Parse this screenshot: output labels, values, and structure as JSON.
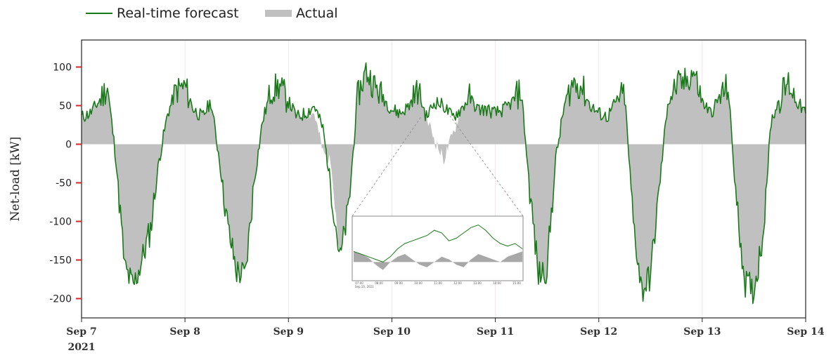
{
  "chart_data": {
    "type": "area",
    "xlabel": "",
    "ylabel": "Net-load [kW]",
    "x_ticks": [
      "Sep 7",
      "Sep 8",
      "Sep 9",
      "Sep 10",
      "Sep 11",
      "Sep 12",
      "Sep 13",
      "Sep 14"
    ],
    "x_year_label": "2021",
    "xlim": [
      "2021-09-07",
      "2021-09-14"
    ],
    "y_ticks": [
      100,
      50,
      0,
      -50,
      -100,
      -150,
      -200
    ],
    "ylim": [
      -225,
      135
    ],
    "legend": {
      "position": "top-left",
      "entries": [
        "Real-time forecast",
        "Actual"
      ]
    },
    "series": [
      {
        "name": "Real-time forecast",
        "kind": "line",
        "color": "#1a7a1a",
        "x": [
          "2021-09-07T00:00",
          "2021-09-07T02:00",
          "2021-09-07T04:00",
          "2021-09-07T06:00",
          "2021-09-07T08:00",
          "2021-09-07T10:00",
          "2021-09-07T12:00",
          "2021-09-07T14:00",
          "2021-09-07T16:00",
          "2021-09-07T18:00",
          "2021-09-07T20:00",
          "2021-09-07T22:00",
          "2021-09-08T00:00",
          "2021-09-08T02:00",
          "2021-09-08T04:00",
          "2021-09-08T06:00",
          "2021-09-08T08:00",
          "2021-09-08T10:00",
          "2021-09-08T12:00",
          "2021-09-08T14:00",
          "2021-09-08T16:00",
          "2021-09-08T18:00",
          "2021-09-08T20:00",
          "2021-09-08T22:00",
          "2021-09-09T00:00",
          "2021-09-09T02:00",
          "2021-09-09T04:00",
          "2021-09-09T06:00",
          "2021-09-09T08:00",
          "2021-09-09T10:00",
          "2021-09-09T12:00",
          "2021-09-09T14:00",
          "2021-09-09T16:00",
          "2021-09-09T18:00",
          "2021-09-09T20:00",
          "2021-09-09T22:00",
          "2021-09-10T00:00",
          "2021-09-10T02:00",
          "2021-09-10T04:00",
          "2021-09-10T06:00",
          "2021-09-10T08:00",
          "2021-09-10T10:00",
          "2021-09-10T12:00",
          "2021-09-10T14:00",
          "2021-09-10T16:00",
          "2021-09-10T18:00",
          "2021-09-10T20:00",
          "2021-09-10T22:00",
          "2021-09-11T00:00",
          "2021-09-11T02:00",
          "2021-09-11T04:00",
          "2021-09-11T06:00",
          "2021-09-11T08:00",
          "2021-09-11T10:00",
          "2021-09-11T12:00",
          "2021-09-11T14:00",
          "2021-09-11T16:00",
          "2021-09-11T18:00",
          "2021-09-11T20:00",
          "2021-09-11T22:00",
          "2021-09-12T00:00",
          "2021-09-12T02:00",
          "2021-09-12T04:00",
          "2021-09-12T06:00",
          "2021-09-12T08:00",
          "2021-09-12T10:00",
          "2021-09-12T12:00",
          "2021-09-12T14:00",
          "2021-09-12T16:00",
          "2021-09-12T18:00",
          "2021-09-12T20:00",
          "2021-09-12T22:00",
          "2021-09-13T00:00",
          "2021-09-13T02:00",
          "2021-09-13T04:00",
          "2021-09-13T06:00",
          "2021-09-13T08:00",
          "2021-09-13T10:00",
          "2021-09-13T12:00",
          "2021-09-13T14:00",
          "2021-09-13T16:00",
          "2021-09-13T18:00",
          "2021-09-13T20:00",
          "2021-09-13T22:00",
          "2021-09-14T00:00"
        ],
        "values": [
          35,
          40,
          55,
          75,
          -20,
          -160,
          -185,
          -150,
          -110,
          -20,
          40,
          70,
          75,
          45,
          35,
          55,
          -20,
          -110,
          -165,
          -170,
          -50,
          30,
          70,
          75,
          55,
          35,
          40,
          50,
          20,
          -60,
          -150,
          -80,
          60,
          95,
          75,
          60,
          45,
          40,
          50,
          70,
          35,
          55,
          50,
          35,
          45,
          60,
          45,
          45,
          40,
          45,
          55,
          70,
          -60,
          -170,
          -160,
          -20,
          50,
          80,
          75,
          50,
          40,
          35,
          55,
          65,
          -100,
          -190,
          -170,
          -60,
          55,
          75,
          80,
          95,
          55,
          40,
          60,
          75,
          -80,
          -180,
          -190,
          -120,
          30,
          60,
          80,
          55,
          40
        ]
      },
      {
        "name": "Actual",
        "kind": "area",
        "color": "#c0c0c0",
        "x": [
          "2021-09-07T00:00",
          "2021-09-07T02:00",
          "2021-09-07T04:00",
          "2021-09-07T06:00",
          "2021-09-07T08:00",
          "2021-09-07T10:00",
          "2021-09-07T12:00",
          "2021-09-07T14:00",
          "2021-09-07T16:00",
          "2021-09-07T18:00",
          "2021-09-07T20:00",
          "2021-09-07T22:00",
          "2021-09-08T00:00",
          "2021-09-08T02:00",
          "2021-09-08T04:00",
          "2021-09-08T06:00",
          "2021-09-08T08:00",
          "2021-09-08T10:00",
          "2021-09-08T12:00",
          "2021-09-08T14:00",
          "2021-09-08T16:00",
          "2021-09-08T18:00",
          "2021-09-08T20:00",
          "2021-09-08T22:00",
          "2021-09-09T00:00",
          "2021-09-09T02:00",
          "2021-09-09T04:00",
          "2021-09-09T06:00",
          "2021-09-09T08:00",
          "2021-09-09T10:00",
          "2021-09-09T12:00",
          "2021-09-09T14:00",
          "2021-09-09T16:00",
          "2021-09-09T18:00",
          "2021-09-09T20:00",
          "2021-09-09T22:00",
          "2021-09-10T00:00",
          "2021-09-10T02:00",
          "2021-09-10T04:00",
          "2021-09-10T06:00",
          "2021-09-10T08:00",
          "2021-09-10T10:00",
          "2021-09-10T12:00",
          "2021-09-10T14:00",
          "2021-09-10T16:00",
          "2021-09-10T18:00",
          "2021-09-10T20:00",
          "2021-09-10T22:00",
          "2021-09-11T00:00",
          "2021-09-11T02:00",
          "2021-09-11T04:00",
          "2021-09-11T06:00",
          "2021-09-11T08:00",
          "2021-09-11T10:00",
          "2021-09-11T12:00",
          "2021-09-11T14:00",
          "2021-09-11T16:00",
          "2021-09-11T18:00",
          "2021-09-11T20:00",
          "2021-09-11T22:00",
          "2021-09-12T00:00",
          "2021-09-12T02:00",
          "2021-09-12T04:00",
          "2021-09-12T06:00",
          "2021-09-12T08:00",
          "2021-09-12T10:00",
          "2021-09-12T12:00",
          "2021-09-12T14:00",
          "2021-09-12T16:00",
          "2021-09-12T18:00",
          "2021-09-12T20:00",
          "2021-09-12T22:00",
          "2021-09-13T00:00",
          "2021-09-13T02:00",
          "2021-09-13T04:00",
          "2021-09-13T06:00",
          "2021-09-13T08:00",
          "2021-09-13T10:00",
          "2021-09-13T12:00",
          "2021-09-13T14:00",
          "2021-09-13T16:00",
          "2021-09-13T18:00",
          "2021-09-13T20:00",
          "2021-09-13T22:00",
          "2021-09-14T00:00"
        ],
        "values": [
          35,
          40,
          55,
          75,
          -20,
          -160,
          -185,
          -150,
          -110,
          -20,
          40,
          70,
          75,
          45,
          35,
          55,
          -20,
          -110,
          -165,
          -170,
          -50,
          30,
          70,
          75,
          55,
          35,
          40,
          40,
          -10,
          -25,
          -150,
          -80,
          60,
          95,
          75,
          60,
          45,
          40,
          50,
          70,
          35,
          5,
          -20,
          10,
          45,
          60,
          45,
          45,
          40,
          45,
          55,
          70,
          -60,
          -170,
          -160,
          -20,
          50,
          80,
          75,
          50,
          40,
          35,
          55,
          65,
          -100,
          -190,
          -170,
          -60,
          55,
          75,
          80,
          95,
          55,
          40,
          60,
          75,
          -80,
          -180,
          -190,
          -120,
          30,
          60,
          80,
          55,
          40
        ]
      }
    ]
  },
  "inset": {
    "xlabels": [
      "07:00",
      "08:00",
      "09:00",
      "10:00",
      "11:00",
      "12:00",
      "13:00",
      "14:00",
      "15:00"
    ],
    "date_label": "Sep 10, 2021",
    "forecast": [
      20,
      15,
      10,
      5,
      0,
      10,
      25,
      35,
      40,
      45,
      50,
      60,
      55,
      40,
      45,
      55,
      65,
      70,
      60,
      45,
      35,
      30,
      35,
      25
    ],
    "actual": [
      20,
      15,
      8,
      -5,
      -15,
      0,
      10,
      15,
      5,
      -5,
      -10,
      0,
      10,
      5,
      -5,
      -10,
      5,
      15,
      10,
      5,
      0,
      10,
      15,
      20
    ]
  },
  "colors": {
    "forecast": "#1a7a1a",
    "actual": "#c0c0c0",
    "tick_mark": "#d62728",
    "grid": "#f2e6e6"
  }
}
